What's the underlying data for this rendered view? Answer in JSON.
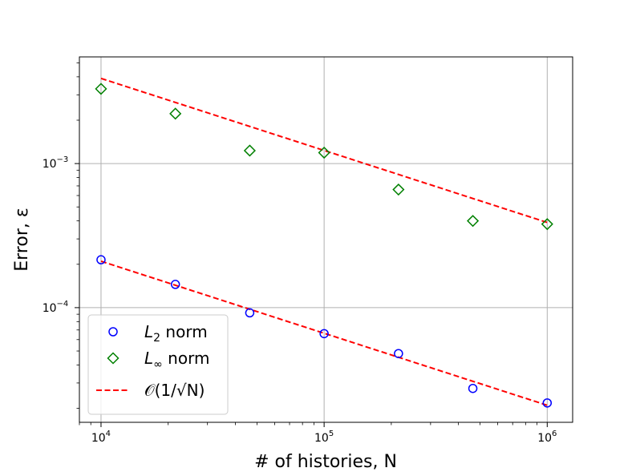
{
  "chart_data": {
    "type": "scatter",
    "xlabel": "# of histories, N",
    "ylabel": "Error, ε",
    "xscale": "log",
    "yscale": "log",
    "xlim": [
      8000,
      1300000
    ],
    "ylim": [
      1.6e-05,
      0.0055
    ],
    "grid": true,
    "legend_position": "lower-left",
    "x_ticks": [
      {
        "value": 10000,
        "base": "10",
        "exp": "4"
      },
      {
        "value": 100000,
        "base": "10",
        "exp": "5"
      },
      {
        "value": 1000000,
        "base": "10",
        "exp": "6"
      }
    ],
    "y_ticks": [
      {
        "value": 0.0001,
        "base": "10",
        "exp": "−4"
      },
      {
        "value": 0.001,
        "base": "10",
        "exp": "−3"
      }
    ],
    "series": [
      {
        "name": "L2 norm",
        "legend_main": "L",
        "legend_sub": "2",
        "legend_suffix": " norm",
        "marker": "circle",
        "color": "#0000ff",
        "x": [
          10000,
          21544,
          46416,
          100000,
          215443,
          464159,
          1000000
        ],
        "y": [
          0.000215,
          0.000145,
          9.2e-05,
          6.6e-05,
          4.8e-05,
          2.75e-05,
          2.18e-05
        ]
      },
      {
        "name": "L∞ norm",
        "legend_main": "L",
        "legend_sub": "∞",
        "legend_suffix": " norm",
        "marker": "diamond",
        "color": "#008000",
        "x": [
          10000,
          21544,
          46416,
          100000,
          215443,
          464159,
          1000000
        ],
        "y": [
          0.0033,
          0.00222,
          0.00123,
          0.00119,
          0.00066,
          0.0004,
          0.00038
        ]
      },
      {
        "name": "O(1/√N)",
        "legend_text": "𝒪(1/√N)",
        "marker": "dashed-line",
        "color": "#ff0000",
        "x": [
          10000,
          1000000
        ],
        "y": [
          0.0039,
          0.00039
        ]
      },
      {
        "name": "O(1/√N)",
        "marker": "dashed-line",
        "color": "#ff0000",
        "x": [
          10000,
          1000000
        ],
        "y": [
          0.00021,
          2.1e-05
        ]
      }
    ]
  }
}
